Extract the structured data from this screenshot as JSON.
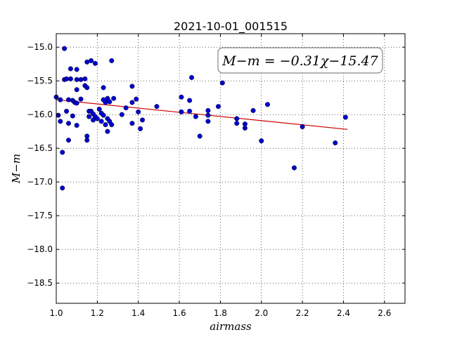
{
  "chart_data": {
    "type": "scatter",
    "title": "2021-10-01_001515",
    "xlabel": "airmass",
    "ylabel": "M−m",
    "xlim": [
      1.0,
      2.7
    ],
    "ylim": [
      -18.8,
      -14.8
    ],
    "y_inverted": true,
    "grid": true,
    "x_ticks": [
      1.0,
      1.2,
      1.4,
      1.6,
      1.8,
      2.0,
      2.2,
      2.4,
      2.6
    ],
    "x_tick_labels": [
      "1.0",
      "1.2",
      "1.4",
      "1.6",
      "1.8",
      "2.0",
      "2.2",
      "2.4",
      "2.6"
    ],
    "y_ticks": [
      -15.0,
      -15.5,
      -16.0,
      -16.5,
      -17.0,
      -17.5,
      -18.0,
      -18.5
    ],
    "y_tick_labels": [
      "−15.0",
      "−15.5",
      "−16.0",
      "−16.5",
      "−17.0",
      "−17.5",
      "−18.0",
      "−18.5"
    ],
    "annotation": "M−m = −0.31χ−15.47",
    "fit": {
      "slope": -0.31,
      "intercept": -15.47,
      "x_range": [
        1.0,
        2.42
      ],
      "color": "#cc0000"
    },
    "points_color": "#0000cc",
    "points": [
      [
        1.0,
        -15.74
      ],
      [
        1.01,
        -16.01
      ],
      [
        1.02,
        -15.78
      ],
      [
        1.02,
        -16.1
      ],
      [
        1.03,
        -16.56
      ],
      [
        1.03,
        -17.09
      ],
      [
        1.04,
        -15.02
      ],
      [
        1.04,
        -15.48
      ],
      [
        1.05,
        -15.47
      ],
      [
        1.05,
        -15.95
      ],
      [
        1.06,
        -15.78
      ],
      [
        1.06,
        -16.13
      ],
      [
        1.06,
        -16.38
      ],
      [
        1.07,
        -15.32
      ],
      [
        1.07,
        -15.47
      ],
      [
        1.08,
        -15.79
      ],
      [
        1.08,
        -16.02
      ],
      [
        1.09,
        -15.82
      ],
      [
        1.1,
        -15.33
      ],
      [
        1.1,
        -15.48
      ],
      [
        1.1,
        -15.63
      ],
      [
        1.1,
        -15.83
      ],
      [
        1.1,
        -16.16
      ],
      [
        1.12,
        -15.48
      ],
      [
        1.12,
        -15.77
      ],
      [
        1.14,
        -15.47
      ],
      [
        1.14,
        -15.57
      ],
      [
        1.15,
        -15.22
      ],
      [
        1.15,
        -15.6
      ],
      [
        1.15,
        -16.32
      ],
      [
        1.15,
        -16.38
      ],
      [
        1.16,
        -15.95
      ],
      [
        1.16,
        -16.03
      ],
      [
        1.17,
        -15.2
      ],
      [
        1.17,
        -15.95
      ],
      [
        1.18,
        -15.99
      ],
      [
        1.18,
        -16.08
      ],
      [
        1.19,
        -15.24
      ],
      [
        1.19,
        -16.03
      ],
      [
        1.2,
        -16.06
      ],
      [
        1.21,
        -15.92
      ],
      [
        1.22,
        -15.98
      ],
      [
        1.22,
        -16.1
      ],
      [
        1.23,
        -15.6
      ],
      [
        1.23,
        -15.78
      ],
      [
        1.23,
        -16.01
      ],
      [
        1.24,
        -15.82
      ],
      [
        1.24,
        -16.15
      ],
      [
        1.25,
        -15.76
      ],
      [
        1.25,
        -16.06
      ],
      [
        1.25,
        -16.25
      ],
      [
        1.26,
        -15.81
      ],
      [
        1.26,
        -16.1
      ],
      [
        1.27,
        -16.15
      ],
      [
        1.27,
        -15.2
      ],
      [
        1.28,
        -15.76
      ],
      [
        1.32,
        -16.0
      ],
      [
        1.34,
        -15.9
      ],
      [
        1.37,
        -15.58
      ],
      [
        1.37,
        -15.82
      ],
      [
        1.37,
        -16.13
      ],
      [
        1.39,
        -15.77
      ],
      [
        1.4,
        -15.96
      ],
      [
        1.41,
        -16.21
      ],
      [
        1.42,
        -16.08
      ],
      [
        1.49,
        -15.88
      ],
      [
        1.61,
        -15.74
      ],
      [
        1.61,
        -15.96
      ],
      [
        1.65,
        -15.79
      ],
      [
        1.65,
        -15.95
      ],
      [
        1.66,
        -15.45
      ],
      [
        1.68,
        -16.03
      ],
      [
        1.7,
        -16.32
      ],
      [
        1.74,
        -15.94
      ],
      [
        1.74,
        -16.01
      ],
      [
        1.74,
        -16.1
      ],
      [
        1.79,
        -15.88
      ],
      [
        1.81,
        -15.53
      ],
      [
        1.88,
        -16.13
      ],
      [
        1.88,
        -16.06
      ],
      [
        1.92,
        -16.14
      ],
      [
        1.92,
        -16.2
      ],
      [
        1.96,
        -15.94
      ],
      [
        2.0,
        -16.39
      ],
      [
        2.03,
        -15.85
      ],
      [
        2.16,
        -16.79
      ],
      [
        2.2,
        -16.18
      ],
      [
        2.36,
        -16.42
      ],
      [
        2.41,
        -16.04
      ]
    ]
  }
}
